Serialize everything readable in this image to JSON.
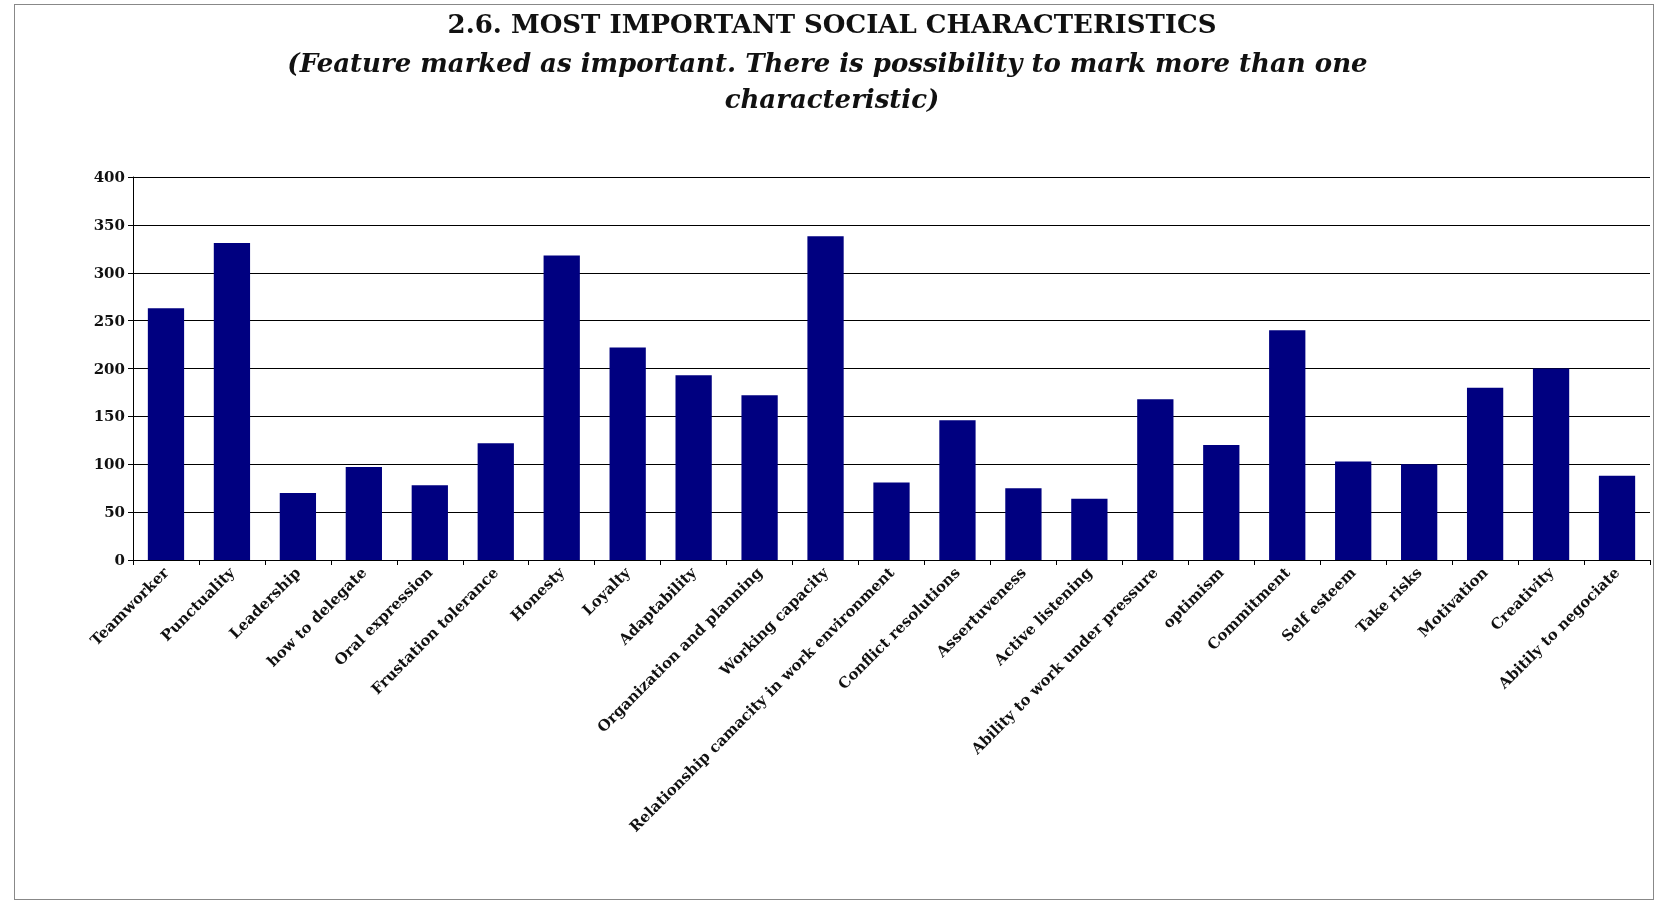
{
  "chart_data": {
    "type": "bar",
    "title": "2.6. MOST IMPORTANT SOCIAL CHARACTERISTICS",
    "subtitle": "(Feature marked as important. There is possibility to mark more than one characteristic)",
    "categories": [
      "Teamworker",
      "Punctuality",
      "Leadership",
      "how to delegate",
      "Oral expression",
      "Frustation tolerance",
      "Honesty",
      "Loyalty",
      "Adaptability",
      "Organization and planning",
      "Working capacity",
      "Relationship camacity in work environment",
      "Conflict resolutions",
      "Assertuveness",
      "Active listening",
      "Ability to work under pressure",
      "optimism",
      "Commitment",
      "Self esteem",
      "Take risks",
      "Motivation",
      "Creativity",
      "Abitily to negociate"
    ],
    "values": [
      263,
      331,
      70,
      97,
      78,
      122,
      318,
      222,
      193,
      172,
      338,
      81,
      146,
      75,
      64,
      168,
      120,
      240,
      103,
      100,
      180,
      200,
      88
    ],
    "color": "#000080",
    "ylim": [
      0,
      400
    ],
    "yticks": [
      0,
      50,
      100,
      150,
      200,
      250,
      300,
      350,
      400
    ],
    "grid": true
  }
}
